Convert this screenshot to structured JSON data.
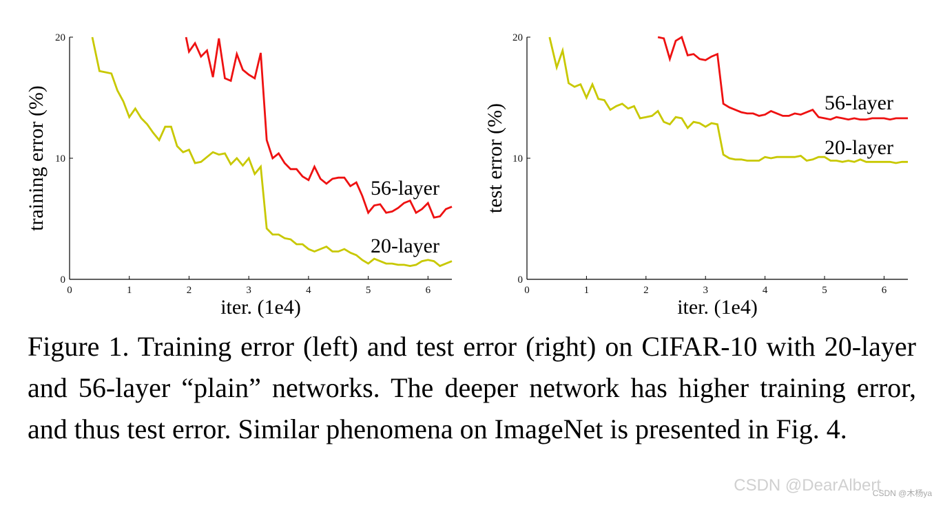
{
  "chart_data": [
    {
      "type": "line",
      "title": "",
      "xlabel": "iter. (1e4)",
      "ylabel": "training error (%)",
      "xlim": [
        0,
        6.4
      ],
      "ylim": [
        0,
        20
      ],
      "xticks": [
        "0",
        "1",
        "2",
        "3",
        "4",
        "5",
        "6"
      ],
      "yticks": [
        "0",
        "10",
        "20"
      ],
      "grid": false,
      "series": [
        {
          "name": "56-layer",
          "color": "#ee1111",
          "x": [
            1.95,
            2.0,
            2.1,
            2.2,
            2.3,
            2.4,
            2.5,
            2.6,
            2.7,
            2.8,
            2.9,
            3.0,
            3.1,
            3.2,
            3.3,
            3.4,
            3.5,
            3.6,
            3.7,
            3.8,
            3.9,
            4.0,
            4.1,
            4.2,
            4.3,
            4.4,
            4.5,
            4.6,
            4.7,
            4.8,
            4.9,
            5.0,
            5.1,
            5.2,
            5.3,
            5.4,
            5.5,
            5.6,
            5.7,
            5.8,
            5.9,
            6.0,
            6.1,
            6.2,
            6.3,
            6.4
          ],
          "values": [
            20.0,
            18.8,
            19.5,
            18.4,
            18.9,
            16.7,
            19.9,
            16.6,
            16.4,
            18.6,
            17.3,
            16.9,
            16.6,
            18.7,
            11.5,
            10.0,
            10.4,
            9.6,
            9.1,
            9.1,
            8.5,
            8.2,
            9.3,
            8.3,
            7.9,
            8.3,
            8.4,
            8.4,
            7.7,
            8.0,
            6.9,
            5.5,
            6.1,
            6.2,
            5.5,
            5.6,
            5.9,
            6.3,
            6.5,
            5.5,
            5.8,
            6.3,
            5.1,
            5.2,
            5.8,
            6.0
          ]
        },
        {
          "name": "20-layer",
          "color": "#c8c800",
          "x": [
            0.38,
            0.5,
            0.6,
            0.7,
            0.8,
            0.9,
            1.0,
            1.1,
            1.2,
            1.3,
            1.4,
            1.5,
            1.6,
            1.7,
            1.8,
            1.9,
            2.0,
            2.1,
            2.2,
            2.3,
            2.4,
            2.5,
            2.6,
            2.7,
            2.8,
            2.9,
            3.0,
            3.1,
            3.2,
            3.3,
            3.4,
            3.5,
            3.6,
            3.7,
            3.8,
            3.9,
            4.0,
            4.1,
            4.2,
            4.3,
            4.4,
            4.5,
            4.6,
            4.7,
            4.8,
            4.9,
            5.0,
            5.1,
            5.2,
            5.3,
            5.4,
            5.5,
            5.6,
            5.7,
            5.8,
            5.9,
            6.0,
            6.1,
            6.2,
            6.3,
            6.4
          ],
          "values": [
            20.0,
            17.2,
            17.1,
            17.0,
            15.6,
            14.7,
            13.4,
            14.1,
            13.3,
            12.8,
            12.1,
            11.5,
            12.6,
            12.6,
            11.0,
            10.5,
            10.7,
            9.6,
            9.7,
            10.1,
            10.5,
            10.3,
            10.4,
            9.5,
            10.0,
            9.4,
            10.0,
            8.7,
            9.3,
            4.2,
            3.7,
            3.7,
            3.4,
            3.3,
            2.9,
            2.9,
            2.5,
            2.3,
            2.5,
            2.7,
            2.3,
            2.3,
            2.5,
            2.2,
            2.0,
            1.6,
            1.3,
            1.7,
            1.5,
            1.3,
            1.3,
            1.2,
            1.2,
            1.1,
            1.2,
            1.5,
            1.6,
            1.5,
            1.1,
            1.3,
            1.5
          ]
        }
      ]
    },
    {
      "type": "line",
      "title": "",
      "xlabel": "iter. (1e4)",
      "ylabel": "test error (%)",
      "xlim": [
        0,
        6.4
      ],
      "ylim": [
        0,
        20
      ],
      "xticks": [
        "0",
        "1",
        "2",
        "3",
        "4",
        "5",
        "6"
      ],
      "yticks": [
        "0",
        "10",
        "20"
      ],
      "grid": false,
      "series": [
        {
          "name": "56-layer",
          "color": "#ee1111",
          "x": [
            2.2,
            2.3,
            2.4,
            2.5,
            2.6,
            2.7,
            2.8,
            2.9,
            3.0,
            3.1,
            3.2,
            3.3,
            3.4,
            3.5,
            3.6,
            3.7,
            3.8,
            3.9,
            4.0,
            4.1,
            4.2,
            4.3,
            4.4,
            4.5,
            4.6,
            4.7,
            4.8,
            4.9,
            5.0,
            5.1,
            5.2,
            5.3,
            5.4,
            5.5,
            5.6,
            5.7,
            5.8,
            5.9,
            6.0,
            6.1,
            6.2,
            6.3,
            6.4
          ],
          "values": [
            20.0,
            19.9,
            18.2,
            19.7,
            20.0,
            18.5,
            18.6,
            18.2,
            18.1,
            18.4,
            18.6,
            14.5,
            14.2,
            14.0,
            13.8,
            13.7,
            13.7,
            13.5,
            13.6,
            13.9,
            13.7,
            13.5,
            13.5,
            13.7,
            13.6,
            13.8,
            14.0,
            13.4,
            13.3,
            13.2,
            13.4,
            13.3,
            13.2,
            13.3,
            13.2,
            13.2,
            13.3,
            13.3,
            13.3,
            13.2,
            13.3,
            13.3,
            13.3
          ]
        },
        {
          "name": "20-layer",
          "color": "#c8c800",
          "x": [
            0.38,
            0.5,
            0.6,
            0.7,
            0.8,
            0.9,
            1.0,
            1.1,
            1.2,
            1.3,
            1.4,
            1.5,
            1.6,
            1.7,
            1.8,
            1.9,
            2.0,
            2.1,
            2.2,
            2.3,
            2.4,
            2.5,
            2.6,
            2.7,
            2.8,
            2.9,
            3.0,
            3.1,
            3.2,
            3.3,
            3.4,
            3.5,
            3.6,
            3.7,
            3.8,
            3.9,
            4.0,
            4.1,
            4.2,
            4.3,
            4.4,
            4.5,
            4.6,
            4.7,
            4.8,
            4.9,
            5.0,
            5.1,
            5.2,
            5.3,
            5.4,
            5.5,
            5.6,
            5.7,
            5.8,
            5.9,
            6.0,
            6.1,
            6.2,
            6.3,
            6.4
          ],
          "values": [
            20.0,
            17.5,
            18.9,
            16.2,
            15.9,
            16.1,
            15.0,
            16.1,
            14.9,
            14.8,
            14.0,
            14.3,
            14.5,
            14.1,
            14.3,
            13.3,
            13.4,
            13.5,
            13.9,
            13.0,
            12.8,
            13.4,
            13.3,
            12.5,
            13.0,
            12.9,
            12.6,
            12.9,
            12.8,
            10.3,
            10.0,
            9.9,
            9.9,
            9.8,
            9.8,
            9.8,
            10.1,
            10.0,
            10.1,
            10.1,
            10.1,
            10.1,
            10.2,
            9.8,
            9.9,
            10.1,
            10.1,
            9.8,
            9.8,
            9.7,
            9.8,
            9.7,
            9.9,
            9.7,
            9.7,
            9.7,
            9.7,
            9.7,
            9.6,
            9.7,
            9.7
          ]
        }
      ]
    }
  ],
  "caption": "Figure 1. Training error (left) and test error (right) on CIFAR-10 with 20-layer and 56-layer “plain” networks. The deeper network has higher training error, and thus test error. Similar phenomena on ImageNet is presented in Fig. 4.",
  "watermark": "CSDN @DearAlbert",
  "watermark_small": "CSDN @木杨ya"
}
